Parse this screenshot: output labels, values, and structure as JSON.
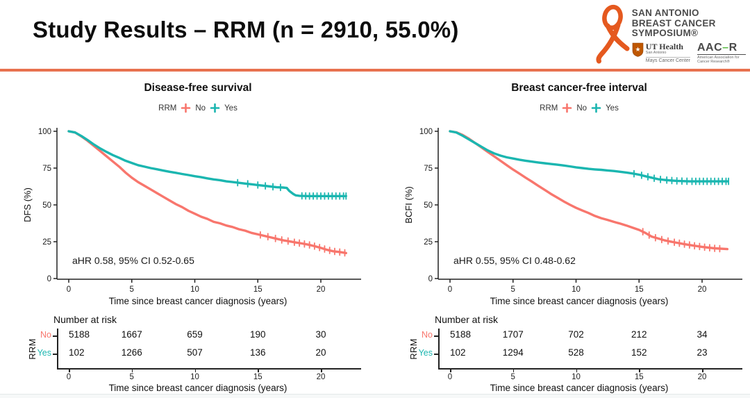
{
  "slide": {
    "title": "Study Results – RRM (n = 2910, 55.0%)"
  },
  "logo": {
    "brand_line1": "SAN ANTONIO",
    "brand_line2": "BREAST CANCER",
    "brand_line3": "SYMPOSIUM®",
    "ut_name": "UT Health",
    "ut_sub": "San Antonio",
    "ut_mays": "Mays Cancer Center",
    "aacr_name": "AAC",
    "aacr_dash": "–",
    "aacr_r": "R",
    "aacr_sub": "American Association for Cancer Research®"
  },
  "colors": {
    "no": "#F8766D",
    "yes": "#1BB6B0",
    "accent_rule": "#E8714F",
    "ribbon": "#E5591F",
    "axis": "#222222"
  },
  "chart_data": [
    {
      "id": "dfs",
      "type": "line",
      "title": "Disease-free survival",
      "legend_title": "RRM",
      "legend": [
        {
          "label": "No",
          "color": "#F8766D"
        },
        {
          "label": "Yes",
          "color": "#1BB6B0"
        }
      ],
      "ylabel": "DFS (%)",
      "xlabel": "Time since breast cancer diagnosis (years)",
      "annotation": "aHR 0.58, 95% CI 0.52-0.65",
      "xticks": [
        0,
        5,
        10,
        15,
        20
      ],
      "yticks": [
        0,
        25,
        50,
        75,
        100
      ],
      "xlim": [
        0,
        22.5
      ],
      "ylim": [
        0,
        100
      ],
      "series": [
        {
          "name": "No",
          "color": "#F8766D",
          "points": [
            [
              0,
              100
            ],
            [
              0.5,
              99.2
            ],
            [
              1,
              96.5
            ],
            [
              1.5,
              93.5
            ],
            [
              2,
              90
            ],
            [
              2.5,
              86.5
            ],
            [
              3,
              83
            ],
            [
              3.5,
              79.5
            ],
            [
              4,
              76
            ],
            [
              4.5,
              72
            ],
            [
              5,
              68.5
            ],
            [
              5.5,
              65.5
            ],
            [
              6,
              63
            ],
            [
              6.5,
              60.5
            ],
            [
              7,
              58
            ],
            [
              7.5,
              55.5
            ],
            [
              8,
              53
            ],
            [
              8.5,
              50.5
            ],
            [
              9,
              48.5
            ],
            [
              9.5,
              46
            ],
            [
              10,
              44
            ],
            [
              10.5,
              42
            ],
            [
              11,
              40.5
            ],
            [
              11.5,
              38.5
            ],
            [
              12,
              37.5
            ],
            [
              12.5,
              36
            ],
            [
              13,
              35
            ],
            [
              13.5,
              33.5
            ],
            [
              14,
              32.5
            ],
            [
              14.5,
              31
            ],
            [
              15,
              30
            ],
            [
              15.5,
              29
            ],
            [
              16,
              28
            ],
            [
              16.5,
              27
            ],
            [
              17,
              26
            ],
            [
              17.5,
              25.3
            ],
            [
              18,
              24.5
            ],
            [
              18.5,
              23.8
            ],
            [
              19,
              23
            ],
            [
              19.5,
              22
            ],
            [
              20,
              20.8
            ],
            [
              20.5,
              19.5
            ],
            [
              21,
              18.5
            ],
            [
              21.5,
              18
            ],
            [
              22,
              17.3
            ]
          ],
          "censor_x": [
            15.2,
            15.8,
            16.4,
            16.9,
            17.4,
            17.9,
            18.3,
            18.7,
            19.1,
            19.5,
            19.9,
            20.3,
            20.7,
            21.1,
            21.5,
            21.9
          ]
        },
        {
          "name": "Yes",
          "color": "#1BB6B0",
          "points": [
            [
              0,
              100
            ],
            [
              0.5,
              99.2
            ],
            [
              1,
              96.8
            ],
            [
              1.5,
              94
            ],
            [
              2,
              91
            ],
            [
              2.5,
              88.3
            ],
            [
              3,
              86
            ],
            [
              3.5,
              83.8
            ],
            [
              4,
              82
            ],
            [
              4.5,
              80
            ],
            [
              5,
              78.5
            ],
            [
              5.5,
              77
            ],
            [
              6,
              76
            ],
            [
              6.5,
              75
            ],
            [
              7,
              74.2
            ],
            [
              7.5,
              73.3
            ],
            [
              8,
              72.5
            ],
            [
              8.5,
              71.8
            ],
            [
              9,
              71
            ],
            [
              9.5,
              70.3
            ],
            [
              10,
              69.5
            ],
            [
              10.5,
              68.8
            ],
            [
              11,
              68
            ],
            [
              11.5,
              67.3
            ],
            [
              12,
              66.8
            ],
            [
              12.5,
              66
            ],
            [
              13,
              65.5
            ],
            [
              13.5,
              65
            ],
            [
              14,
              64.5
            ],
            [
              14.5,
              64
            ],
            [
              15,
              63.5
            ],
            [
              15.5,
              63
            ],
            [
              16,
              62.5
            ],
            [
              16.5,
              62
            ],
            [
              17,
              61.8
            ],
            [
              17.3,
              61.5
            ],
            [
              17.5,
              59.5
            ],
            [
              17.8,
              57.5
            ],
            [
              18,
              56.5
            ],
            [
              18.3,
              56.2
            ],
            [
              19,
              56
            ],
            [
              22,
              56
            ]
          ],
          "censor_x": [
            13.4,
            14.2,
            15.0,
            15.6,
            16.2,
            16.8,
            18.5,
            18.8,
            19.1,
            19.4,
            19.7,
            20.0,
            20.3,
            20.6,
            20.9,
            21.2,
            21.5,
            21.8,
            22.0
          ]
        }
      ],
      "risk_table": {
        "heading": "Number at risk",
        "group_label": "RRM",
        "times": [
          0,
          5,
          10,
          15,
          20
        ],
        "rows": [
          {
            "label": "No",
            "color": "#F8766D",
            "values": [
              "5188",
              "1667",
              "659",
              "190",
              "30"
            ]
          },
          {
            "label": "Yes",
            "color": "#1BB6B0",
            "values": [
              "102",
              "1266",
              "507",
              "136",
              "20"
            ]
          }
        ],
        "xlabel": "Time since breast cancer diagnosis (years)"
      }
    },
    {
      "id": "bcfi",
      "type": "line",
      "title": "Breast cancer-free interval",
      "legend_title": "RRM",
      "legend": [
        {
          "label": "No",
          "color": "#F8766D"
        },
        {
          "label": "Yes",
          "color": "#1BB6B0"
        }
      ],
      "ylabel": "BCFI (%)",
      "xlabel": "Time since breast cancer diagnosis (years)",
      "annotation": "aHR 0.55, 95% CI 0.48-0.62",
      "xticks": [
        0,
        5,
        10,
        15,
        20
      ],
      "yticks": [
        0,
        25,
        50,
        75,
        100
      ],
      "xlim": [
        0,
        22.5
      ],
      "ylim": [
        0,
        100
      ],
      "series": [
        {
          "name": "No",
          "color": "#F8766D",
          "points": [
            [
              0,
              100
            ],
            [
              0.5,
              99.3
            ],
            [
              1,
              97.5
            ],
            [
              1.5,
              95
            ],
            [
              2,
              92
            ],
            [
              2.5,
              89
            ],
            [
              3,
              86
            ],
            [
              3.5,
              83
            ],
            [
              4,
              80
            ],
            [
              4.5,
              77
            ],
            [
              5,
              74
            ],
            [
              5.5,
              71.3
            ],
            [
              6,
              68.5
            ],
            [
              6.5,
              65.8
            ],
            [
              7,
              63
            ],
            [
              7.5,
              60.3
            ],
            [
              8,
              57.5
            ],
            [
              8.5,
              55
            ],
            [
              9,
              52.5
            ],
            [
              9.5,
              50.2
            ],
            [
              10,
              48
            ],
            [
              10.5,
              46.2
            ],
            [
              11,
              44.5
            ],
            [
              11.5,
              42.5
            ],
            [
              12,
              41
            ],
            [
              12.5,
              39.8
            ],
            [
              13,
              38.5
            ],
            [
              13.5,
              37.3
            ],
            [
              14,
              36
            ],
            [
              14.5,
              34.5
            ],
            [
              15,
              33
            ],
            [
              15.5,
              31
            ],
            [
              16,
              28.5
            ],
            [
              16.5,
              27.2
            ],
            [
              17,
              26
            ],
            [
              17.5,
              25.1
            ],
            [
              18,
              24.3
            ],
            [
              18.5,
              23.5
            ],
            [
              19,
              22.8
            ],
            [
              19.5,
              22.1
            ],
            [
              20,
              21.5
            ],
            [
              20.5,
              21
            ],
            [
              21,
              20.5
            ],
            [
              22,
              20
            ]
          ],
          "censor_x": [
            15.3,
            15.8,
            16.3,
            16.8,
            17.3,
            17.8,
            18.2,
            18.6,
            19.0,
            19.4,
            19.8,
            20.2,
            20.6,
            21.0,
            21.4
          ]
        },
        {
          "name": "Yes",
          "color": "#1BB6B0",
          "points": [
            [
              0,
              100
            ],
            [
              0.5,
              99.2
            ],
            [
              1,
              97
            ],
            [
              1.5,
              94.5
            ],
            [
              2,
              92
            ],
            [
              2.5,
              89.5
            ],
            [
              3,
              87
            ],
            [
              3.5,
              85
            ],
            [
              4,
              83.5
            ],
            [
              4.5,
              82.3
            ],
            [
              5,
              81.5
            ],
            [
              5.5,
              80.7
            ],
            [
              6,
              80
            ],
            [
              6.5,
              79.4
            ],
            [
              7,
              78.8
            ],
            [
              7.5,
              78.3
            ],
            [
              8,
              77.8
            ],
            [
              8.5,
              77.3
            ],
            [
              9,
              76.8
            ],
            [
              9.5,
              76.2
            ],
            [
              10,
              75.5
            ],
            [
              10.5,
              75
            ],
            [
              11,
              74.5
            ],
            [
              11.5,
              74.1
            ],
            [
              12,
              73.8
            ],
            [
              12.5,
              73.4
            ],
            [
              13,
              73
            ],
            [
              13.5,
              72.5
            ],
            [
              14,
              72
            ],
            [
              14.5,
              71.3
            ],
            [
              15,
              70.5
            ],
            [
              15.5,
              69.5
            ],
            [
              16,
              68.5
            ],
            [
              16.5,
              67.5
            ],
            [
              17,
              67
            ],
            [
              17.5,
              66.6
            ],
            [
              18,
              66.3
            ],
            [
              19,
              66
            ],
            [
              22,
              66
            ]
          ],
          "censor_x": [
            14.6,
            15.2,
            15.7,
            16.2,
            16.7,
            17.2,
            17.6,
            18.0,
            18.4,
            18.8,
            19.2,
            19.5,
            19.8,
            20.1,
            20.4,
            20.7,
            21.0,
            21.3,
            21.6,
            21.9,
            22.1
          ]
        }
      ],
      "risk_table": {
        "heading": "Number at risk",
        "group_label": "RRM",
        "times": [
          0,
          5,
          10,
          15,
          20
        ],
        "rows": [
          {
            "label": "No",
            "color": "#F8766D",
            "values": [
              "5188",
              "1707",
              "702",
              "212",
              "34"
            ]
          },
          {
            "label": "Yes",
            "color": "#1BB6B0",
            "values": [
              "102",
              "1294",
              "528",
              "152",
              "23"
            ]
          }
        ],
        "xlabel": "Time since breast cancer diagnosis (years)"
      }
    }
  ]
}
